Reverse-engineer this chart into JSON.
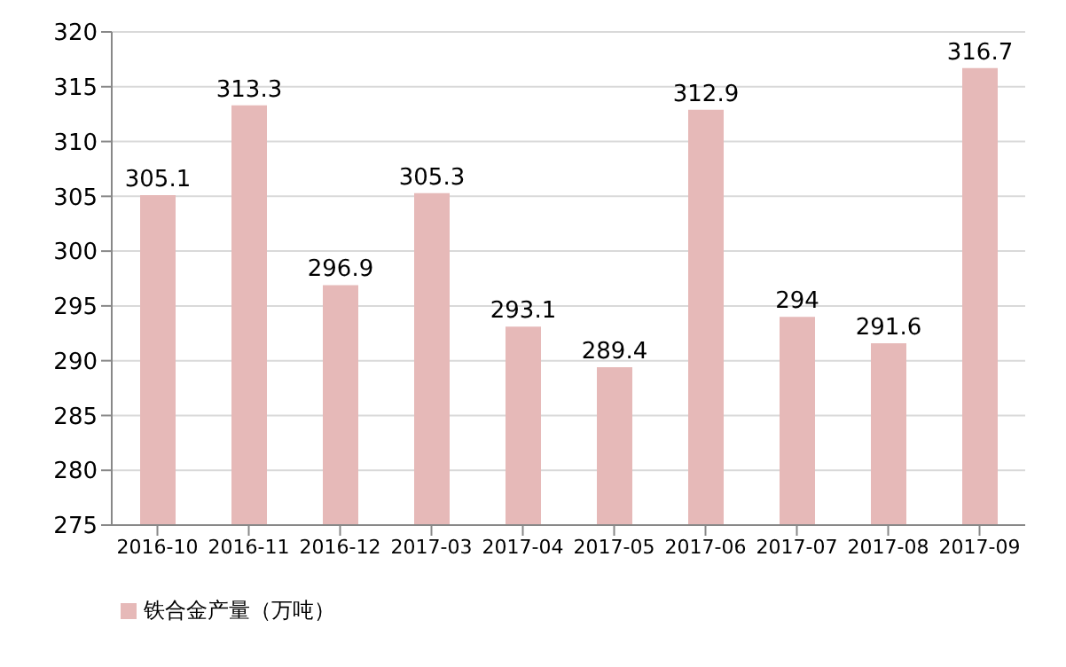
{
  "chart_data": {
    "type": "bar",
    "categories": [
      "2016-10",
      "2016-11",
      "2016-12",
      "2017-03",
      "2017-04",
      "2017-05",
      "2017-06",
      "2017-07",
      "2017-08",
      "2017-09"
    ],
    "series": [
      {
        "name": "铁合金产量（万吨）",
        "color": "#e6b9b8",
        "values": [
          305.1,
          313.3,
          296.9,
          305.3,
          293.1,
          289.4,
          312.9,
          294,
          291.6,
          316.7
        ]
      }
    ],
    "ylim": [
      275,
      320
    ],
    "yticks": [
      275,
      280,
      285,
      290,
      295,
      300,
      305,
      310,
      315,
      320
    ],
    "grid": "y",
    "legend": "bottom left",
    "data_labels": true
  }
}
